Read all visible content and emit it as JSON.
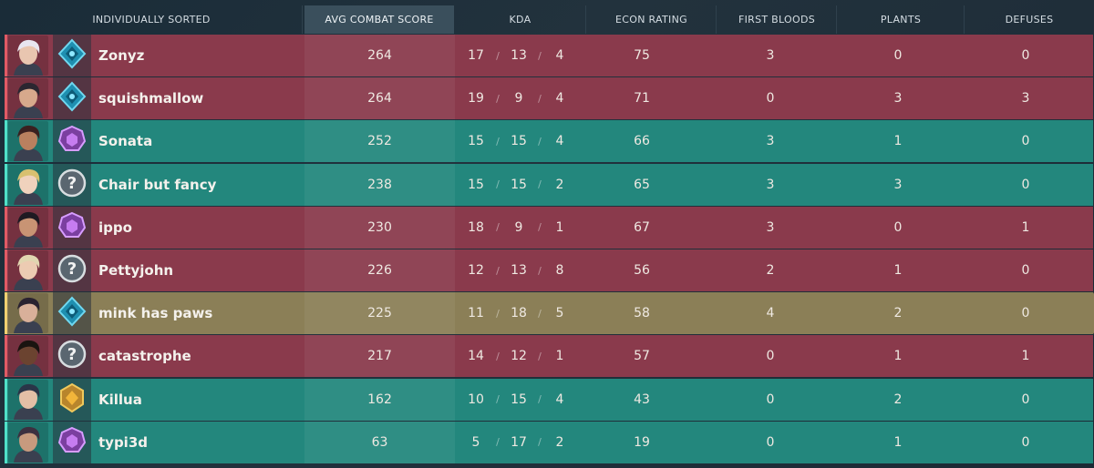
{
  "header": {
    "col_player": "INDIVIDUALLY SORTED",
    "col_acs": "AVG COMBAT SCORE",
    "col_kda": "KDA",
    "col_econ": "ECON RATING",
    "col_fb": "FIRST BLOODS",
    "col_plants": "PLANTS",
    "col_defuses": "DEFUSES"
  },
  "colors": {
    "enemy_row": "#8a3a4c",
    "ally_row": "#23877d",
    "self_row": "#8b7f57"
  },
  "players": [
    {
      "name": "Zonyz",
      "team": "red",
      "rank_icon": "rank-diamond-icon",
      "acs": "264",
      "k": "17",
      "d": "13",
      "a": "4",
      "econ": "75",
      "fb": "3",
      "plants": "0",
      "defuses": "0"
    },
    {
      "name": "squishmallow",
      "team": "red",
      "rank_icon": "rank-diamond-icon",
      "acs": "264",
      "k": "19",
      "d": "9",
      "a": "4",
      "econ": "71",
      "fb": "0",
      "plants": "3",
      "defuses": "3"
    },
    {
      "name": "Sonata",
      "team": "teal",
      "rank_icon": "rank-immortal-icon",
      "acs": "252",
      "k": "15",
      "d": "15",
      "a": "4",
      "econ": "66",
      "fb": "3",
      "plants": "1",
      "defuses": "0"
    },
    {
      "name": "Chair but fancy",
      "team": "teal",
      "rank_icon": "rank-unranked-icon",
      "acs": "238",
      "k": "15",
      "d": "15",
      "a": "2",
      "econ": "65",
      "fb": "3",
      "plants": "3",
      "defuses": "0"
    },
    {
      "name": "ippo",
      "team": "red",
      "rank_icon": "rank-immortal-icon",
      "acs": "230",
      "k": "18",
      "d": "9",
      "a": "1",
      "econ": "67",
      "fb": "3",
      "plants": "0",
      "defuses": "1"
    },
    {
      "name": "Pettyjohn",
      "team": "red",
      "rank_icon": "rank-unranked-icon",
      "acs": "226",
      "k": "12",
      "d": "13",
      "a": "8",
      "econ": "56",
      "fb": "2",
      "plants": "1",
      "defuses": "0"
    },
    {
      "name": "mink has paws",
      "team": "gold",
      "rank_icon": "rank-diamond-icon",
      "acs": "225",
      "k": "11",
      "d": "18",
      "a": "5",
      "econ": "58",
      "fb": "4",
      "plants": "2",
      "defuses": "0"
    },
    {
      "name": "catastrophe",
      "team": "red",
      "rank_icon": "rank-unranked-icon",
      "acs": "217",
      "k": "14",
      "d": "12",
      "a": "1",
      "econ": "57",
      "fb": "0",
      "plants": "1",
      "defuses": "1"
    },
    {
      "name": "Killua",
      "team": "teal",
      "rank_icon": "rank-gold-icon",
      "acs": "162",
      "k": "10",
      "d": "15",
      "a": "4",
      "econ": "43",
      "fb": "0",
      "plants": "2",
      "defuses": "0"
    },
    {
      "name": "typi3d",
      "team": "teal",
      "rank_icon": "rank-immortal-icon",
      "acs": "63",
      "k": "5",
      "d": "17",
      "a": "2",
      "econ": "19",
      "fb": "0",
      "plants": "1",
      "defuses": "0"
    }
  ]
}
